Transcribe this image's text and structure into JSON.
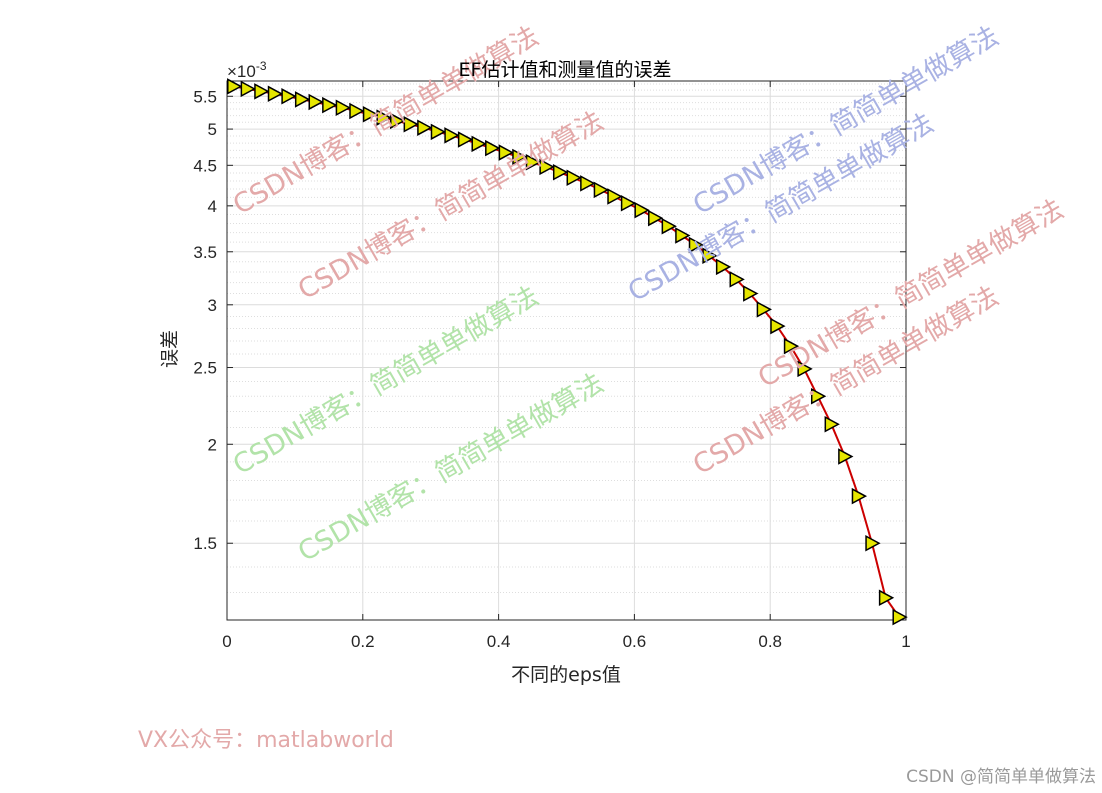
{
  "chart_data": {
    "type": "line",
    "title": "EF估计值和测量值的误差",
    "xlabel": "不同的eps值",
    "ylabel": "误差",
    "y_exponent_label": "×10",
    "y_exponent_power": "-3",
    "y_scale": "log",
    "xlim": [
      0,
      1
    ],
    "ylim": [
      1.2,
      5.75
    ],
    "x_ticks": [
      0,
      0.2,
      0.4,
      0.6,
      0.8,
      1
    ],
    "x_tick_labels": [
      "0",
      "0.2",
      "0.4",
      "0.6",
      "0.8",
      "1"
    ],
    "y_ticks": [
      1.5,
      2,
      2.5,
      3,
      3.5,
      4,
      4.5,
      5,
      5.5
    ],
    "y_tick_labels": [
      "1.5",
      "2",
      "2.5",
      "3",
      "3.5",
      "4",
      "4.5",
      "5",
      "5.5"
    ],
    "grid": true,
    "series": [
      {
        "line_color": "#cc0000",
        "marker": "right-triangle",
        "marker_face_color": "#e6e600",
        "marker_edge_color": "#000000",
        "x": [
          0.01,
          0.03,
          0.05,
          0.07,
          0.09,
          0.11,
          0.13,
          0.15,
          0.17,
          0.19,
          0.21,
          0.23,
          0.25,
          0.27,
          0.29,
          0.31,
          0.33,
          0.35,
          0.37,
          0.39,
          0.41,
          0.43,
          0.45,
          0.47,
          0.49,
          0.51,
          0.53,
          0.55,
          0.57,
          0.59,
          0.61,
          0.63,
          0.65,
          0.67,
          0.69,
          0.71,
          0.73,
          0.75,
          0.77,
          0.79,
          0.81,
          0.83,
          0.85,
          0.87,
          0.89,
          0.91,
          0.93,
          0.95,
          0.97,
          0.99
        ],
        "y": [
          5.66,
          5.62,
          5.58,
          5.54,
          5.5,
          5.45,
          5.41,
          5.36,
          5.32,
          5.27,
          5.22,
          5.17,
          5.12,
          5.07,
          5.02,
          4.96,
          4.91,
          4.85,
          4.79,
          4.73,
          4.67,
          4.61,
          4.54,
          4.48,
          4.41,
          4.34,
          4.27,
          4.19,
          4.11,
          4.03,
          3.95,
          3.86,
          3.77,
          3.67,
          3.57,
          3.46,
          3.35,
          3.23,
          3.1,
          2.96,
          2.82,
          2.66,
          2.49,
          2.3,
          2.12,
          1.93,
          1.72,
          1.5,
          1.28,
          1.21
        ]
      }
    ]
  },
  "watermarks": [
    {
      "text": "CSDN博客：简简单单做算法",
      "color": "#e3a9a9"
    },
    {
      "text": "CSDN博客：简简单单做算法",
      "color": "#e3a9a9"
    },
    {
      "text": "CSDN博客：简简单单做算法",
      "color": "#a9b2e3"
    },
    {
      "text": "CSDN博客：简简单单做算法",
      "color": "#a9b2e3"
    },
    {
      "text": "CSDN博客：简简单单做算法",
      "color": "#e3a9a9"
    },
    {
      "text": "CSDN博客：简简单单做算法",
      "color": "#e3a9a9"
    },
    {
      "text": "CSDN博客：简简单单做算法",
      "color": "#b2e3a9"
    },
    {
      "text": "CSDN博客：简简单单做算法",
      "color": "#b2e3a9"
    }
  ],
  "caption": {
    "vx": "VX公众号：matlabworld",
    "footer": "CSDN @简简单单做算法"
  }
}
